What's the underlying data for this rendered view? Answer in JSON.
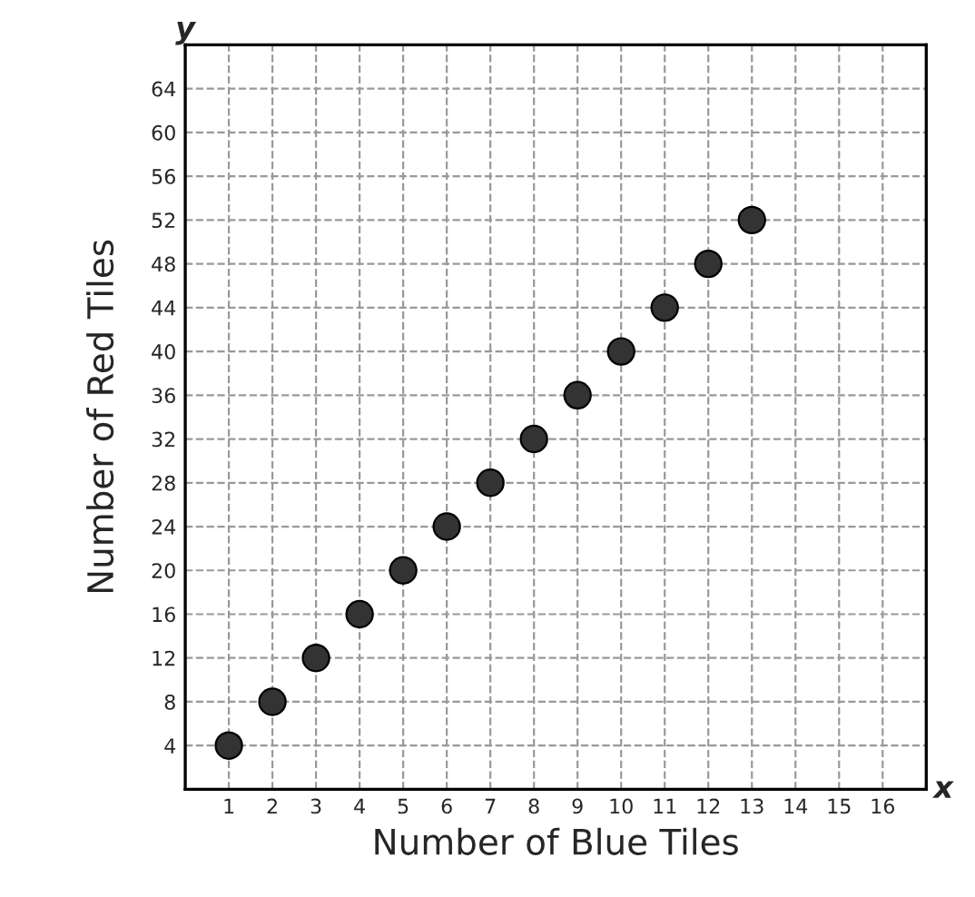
{
  "chart_data": {
    "type": "scatter",
    "xlabel": "Number of Blue Tiles",
    "ylabel": "Number of Red Tiles",
    "annotations": [
      "y",
      "x"
    ],
    "x": [
      1,
      2,
      3,
      4,
      5,
      6,
      7,
      8,
      9,
      10,
      11,
      12,
      13
    ],
    "values": [
      4,
      8,
      12,
      16,
      20,
      24,
      28,
      32,
      36,
      40,
      44,
      48,
      52
    ],
    "color": "#333333",
    "marker": "circle",
    "xlim": [
      0,
      17
    ],
    "ylim": [
      0,
      68
    ],
    "xticks": [
      1,
      2,
      3,
      4,
      5,
      6,
      7,
      8,
      9,
      10,
      11,
      12,
      13,
      14,
      15,
      16
    ],
    "yticks": [
      4,
      8,
      12,
      16,
      20,
      24,
      28,
      32,
      36,
      40,
      44,
      48,
      52,
      56,
      60,
      64
    ],
    "grid": true
  }
}
